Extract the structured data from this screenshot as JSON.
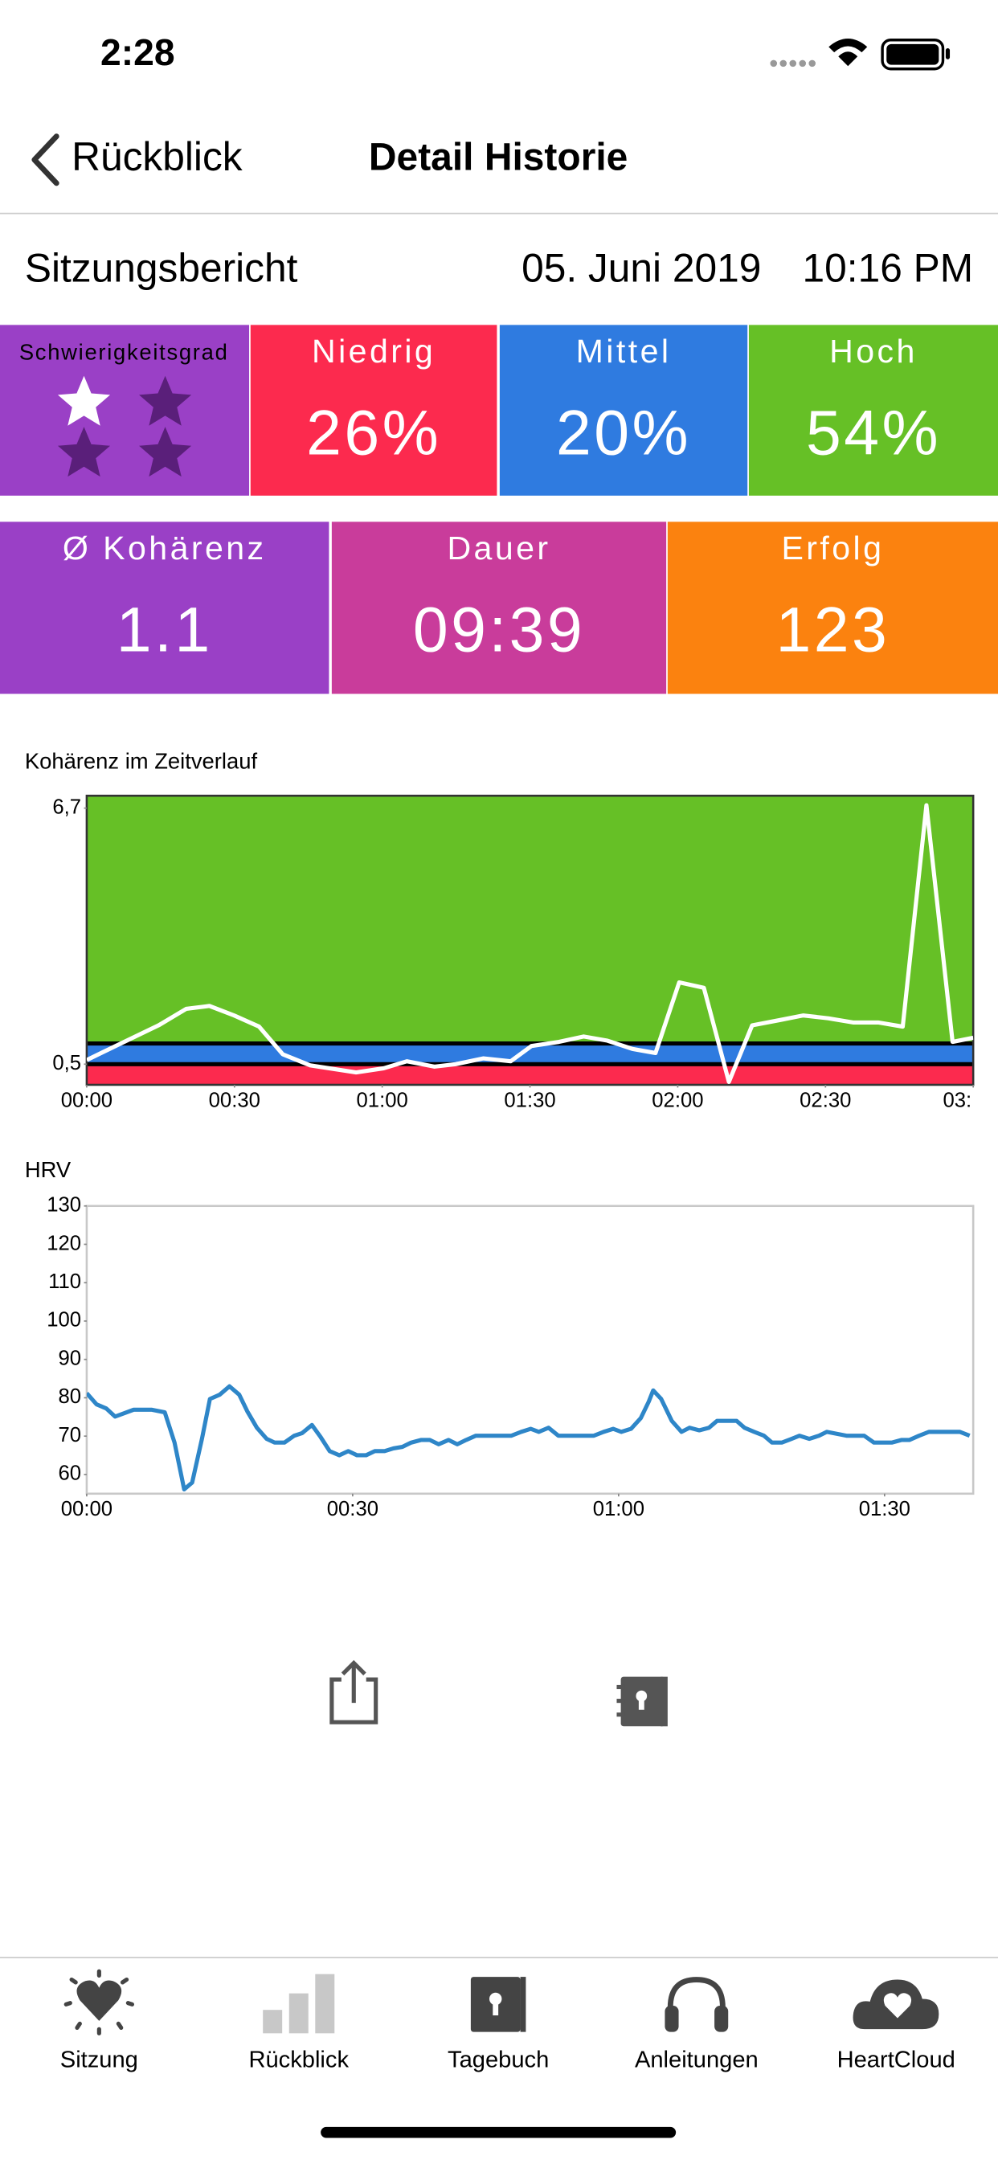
{
  "status_bar": {
    "time": "2:28"
  },
  "nav": {
    "back": "Rückblick",
    "title": "Detail Historie"
  },
  "report": {
    "title": "Sitzungsbericht",
    "date": "05. Juni 2019",
    "time": "10:16 PM"
  },
  "difficulty": {
    "label": "Schwierigkeitsgrad",
    "rating": 1,
    "max": 4,
    "color": "#9a40c6"
  },
  "levels": [
    {
      "label": "Niedrig",
      "value": "26%",
      "color": "#fc2a4e"
    },
    {
      "label": "Mittel",
      "value": "20%",
      "color": "#2f7be0"
    },
    {
      "label": "Hoch",
      "value": "54%",
      "color": "#66c026"
    }
  ],
  "stats": [
    {
      "label": "Ø Kohärenz",
      "value": "1.1",
      "color": "#9a40c6"
    },
    {
      "label": "Dauer",
      "value": "09:39",
      "color": "#c93c9b"
    },
    {
      "label": "Erfolg",
      "value": "123",
      "color": "#fb820f"
    }
  ],
  "chart_data": [
    {
      "type": "line",
      "title": "Kohärenz im Zeitverlauf",
      "color": "#ffffff",
      "x": [
        0,
        7.6,
        14.6,
        20.2,
        24.9,
        29.9,
        35.0,
        39.8,
        45.4,
        54.7,
        60.3,
        65.0,
        70.6,
        74.9,
        80.5,
        86.1,
        90.3,
        95.9,
        100.9,
        105.7,
        110.8,
        115.5,
        120.3,
        125.3,
        130.4,
        135.1,
        140.8,
        145.5,
        150.6,
        155.6,
        160.7,
        165.7,
        170.5,
        175.8,
        180
      ],
      "values": [
        0.6,
        1.04,
        1.44,
        1.84,
        1.91,
        1.68,
        1.41,
        0.74,
        0.47,
        0.3,
        0.4,
        0.57,
        0.44,
        0.5,
        0.64,
        0.57,
        0.94,
        1.04,
        1.17,
        1.07,
        0.87,
        0.77,
        2.48,
        2.35,
        0.07,
        1.44,
        1.57,
        1.68,
        1.61,
        1.51,
        1.51,
        1.41,
        6.77,
        1.04,
        1.14
      ],
      "xlim": [
        0,
        180
      ],
      "ylim": [
        0,
        7
      ],
      "xticks": [
        {
          "value": 0,
          "label": "00:00"
        },
        {
          "value": 30,
          "label": "00:30"
        },
        {
          "value": 60,
          "label": "01:00"
        },
        {
          "value": 90,
          "label": "01:30"
        },
        {
          "value": 120,
          "label": "02:00"
        },
        {
          "value": 150,
          "label": "02:30"
        },
        {
          "value": 180,
          "label": "03:"
        }
      ],
      "yticks": [
        {
          "value": 0.5,
          "label": "0,5"
        },
        {
          "value": 6.7,
          "label": "6,7"
        }
      ],
      "zones": [
        {
          "from": 0,
          "to": 0.5,
          "color": "#fc2a4e"
        },
        {
          "from": 0.5,
          "to": 1,
          "color": "#2f7be0"
        },
        {
          "from": 1,
          "to": 7,
          "color": "#66c026"
        }
      ],
      "frame_color": "#333333"
    },
    {
      "type": "line",
      "title": "HRV",
      "color": "#2e86c8",
      "x": [
        0,
        1.1,
        2.2,
        3.2,
        5.3,
        7.3,
        8.8,
        9.9,
        11.0,
        11.9,
        13.0,
        13.9,
        15.0,
        16.1,
        17.2,
        18.1,
        19.2,
        20.3,
        21.2,
        22.3,
        23.4,
        24.3,
        25.4,
        26.4,
        27.4,
        28.5,
        29.5,
        30.5,
        31.5,
        32.5,
        33.6,
        34.6,
        35.6,
        36.6,
        37.7,
        38.7,
        39.7,
        40.8,
        41.8,
        42.8,
        43.9,
        45.9,
        47.9,
        49.0,
        50.1,
        51.0,
        52.1,
        53.2,
        55.2,
        57.2,
        58.3,
        59.4,
        60.3,
        61.4,
        62.5,
        63.4,
        63.9,
        64.8,
        66.0,
        67.1,
        68.0,
        69.1,
        70.2,
        71.1,
        73.3,
        74.2,
        75.3,
        76.4,
        77.3,
        78.4,
        79.5,
        80.4,
        81.5,
        82.6,
        83.5,
        85.7,
        87.7,
        88.8,
        90.8,
        91.9,
        92.8,
        93.9,
        95.0,
        98.5,
        99.6
      ],
      "values": [
        81.2,
        78.3,
        77.2,
        75.1,
        76.9,
        76.9,
        76.2,
        68.3,
        56.1,
        57.9,
        69.3,
        79.7,
        80.8,
        83.0,
        80.8,
        76.5,
        72.2,
        69.3,
        68.3,
        68.3,
        70.1,
        70.8,
        72.9,
        69.7,
        66.1,
        65.0,
        66.1,
        65.0,
        65.0,
        66.1,
        66.1,
        66.8,
        67.2,
        68.3,
        69.0,
        69.0,
        67.9,
        69.0,
        67.9,
        69.0,
        70.1,
        70.1,
        70.1,
        71.1,
        71.9,
        71.1,
        72.2,
        70.1,
        70.1,
        70.1,
        71.1,
        71.9,
        71.1,
        71.9,
        74.7,
        79.0,
        81.9,
        79.7,
        74.0,
        71.1,
        72.2,
        71.5,
        72.2,
        74.0,
        74.0,
        72.2,
        71.1,
        70.1,
        68.3,
        68.3,
        69.3,
        70.1,
        69.3,
        70.1,
        71.1,
        70.1,
        70.1,
        68.3,
        68.3,
        69.0,
        69.0,
        70.1,
        71.1,
        71.1,
        70.1
      ],
      "xlim": [
        0,
        100
      ],
      "ylim": [
        55,
        130
      ],
      "xticks": [
        {
          "value": 0,
          "label": "00:00"
        },
        {
          "value": 30,
          "label": "00:30"
        },
        {
          "value": 60,
          "label": "01:00"
        },
        {
          "value": 90,
          "label": "01:30"
        }
      ],
      "yticks": [
        60,
        70,
        80,
        90,
        100,
        110,
        120,
        130
      ],
      "frame_color": "#c8c8c8"
    }
  ],
  "tab_bar": {
    "items": [
      {
        "label": "Sitzung",
        "color": "#444444"
      },
      {
        "label": "Rückblick",
        "color": "#b0b0b0"
      },
      {
        "label": "Tagebuch",
        "color": "#444444"
      },
      {
        "label": "Anleitungen",
        "color": "#444444"
      },
      {
        "label": "HeartCloud",
        "color": "#444444"
      }
    ]
  }
}
